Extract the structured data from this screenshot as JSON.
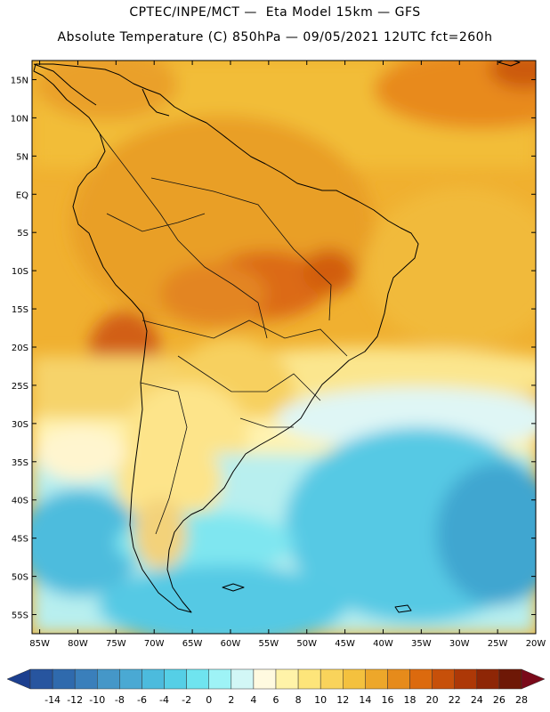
{
  "header": {
    "line1": "CPTEC/INPE/MCT —  Eta Model 15km — GFS",
    "line2": "Absolute Temperature (C) 850hPa — 09/05/2021 12UTC fct=260h"
  },
  "map": {
    "lat_labels": [
      "15N",
      "10N",
      "5N",
      "EQ",
      "5S",
      "10S",
      "15S",
      "20S",
      "25S",
      "30S",
      "35S",
      "40S",
      "45S",
      "50S",
      "55S"
    ],
    "lon_labels": [
      "85W",
      "80W",
      "75W",
      "70W",
      "65W",
      "60W",
      "55W",
      "50W",
      "45W",
      "40W",
      "35W",
      "30W",
      "25W",
      "20W"
    ],
    "lat_range": [
      17.5,
      -57.5
    ],
    "lon_range": [
      -86,
      -20
    ]
  },
  "legend": {
    "labels": [
      "-14",
      "-12",
      "-10",
      "-8",
      "-6",
      "-4",
      "-2",
      "0",
      "2",
      "4",
      "6",
      "8",
      "10",
      "12",
      "14",
      "16",
      "18",
      "20",
      "22",
      "24",
      "26",
      "28"
    ],
    "colors": [
      "#1c3f8f",
      "#27559f",
      "#2f6aad",
      "#3a7fbb",
      "#4597c8",
      "#4aa9d3",
      "#4cbbdd",
      "#55cfe6",
      "#6fe4ef",
      "#9ef3f6",
      "#d2f7f6",
      "#fffae0",
      "#fff3a8",
      "#fde57a",
      "#f9d35b",
      "#f4c13e",
      "#eda72a",
      "#e68b1b",
      "#dc6a0e",
      "#c7500a",
      "#ad3807",
      "#8e2606",
      "#6e1806",
      "#7a0a1a"
    ]
  }
}
